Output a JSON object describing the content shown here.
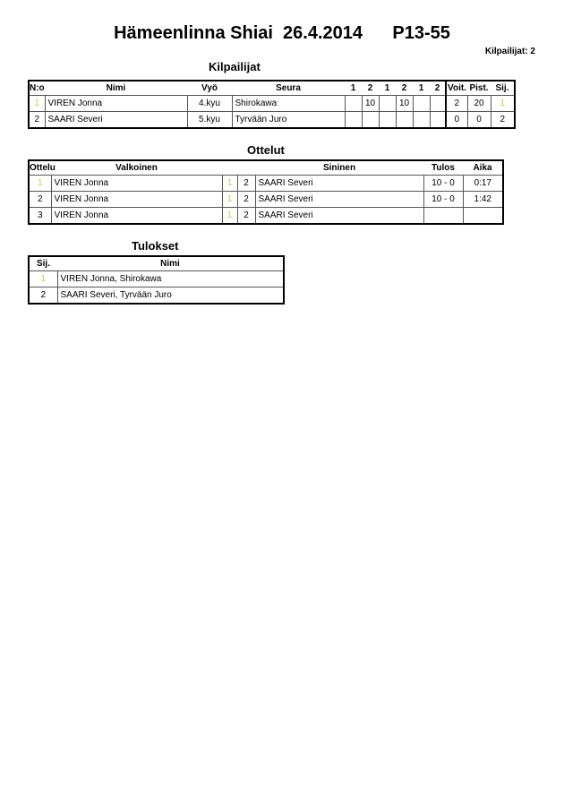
{
  "header": {
    "title": "Hämeenlinna Shiai  26.4.2014      P13-55",
    "count": "Kilpailijat: 2"
  },
  "competitors": {
    "title": "Kilpailijat",
    "columns": [
      "N:o",
      "Nimi",
      "Vyö",
      "Seura",
      "1",
      "2",
      "1",
      "2",
      "1",
      "2",
      "Voit.",
      "Pist.",
      "Sij."
    ],
    "rows": [
      [
        "1",
        "VIREN Jonna",
        "4.kyu",
        "Shirokawa",
        "",
        "10",
        "",
        "10",
        "",
        "",
        "2",
        "20",
        "1"
      ],
      [
        "2",
        "SAARI Severi",
        "5.kyu",
        "Tyrvään Juro",
        "",
        "",
        "",
        "",
        "",
        "",
        "0",
        "0",
        "2"
      ]
    ]
  },
  "matches": {
    "title": "Ottelut",
    "columns": [
      "Ottelu",
      "Valkoinen",
      "Sininen",
      "Tulos",
      "Aika"
    ],
    "rows": [
      [
        "1",
        "VIREN Jonna",
        "1",
        "2",
        "SAARI Severi",
        "10 - 0",
        "0:17"
      ],
      [
        "2",
        "VIREN Jonna",
        "1",
        "2",
        "SAARI Severi",
        "10 - 0",
        "1:42"
      ],
      [
        "3",
        "VIREN Jonna",
        "1",
        "2",
        "SAARI Severi",
        "",
        ""
      ]
    ]
  },
  "results": {
    "title": "Tulokset",
    "columns": [
      "Sij.",
      "Nimi"
    ],
    "rows": [
      [
        "1",
        "VIREN Jonna, Shirokawa"
      ],
      [
        "2",
        "SAARI Severi, Tyrvään Juro"
      ]
    ]
  }
}
